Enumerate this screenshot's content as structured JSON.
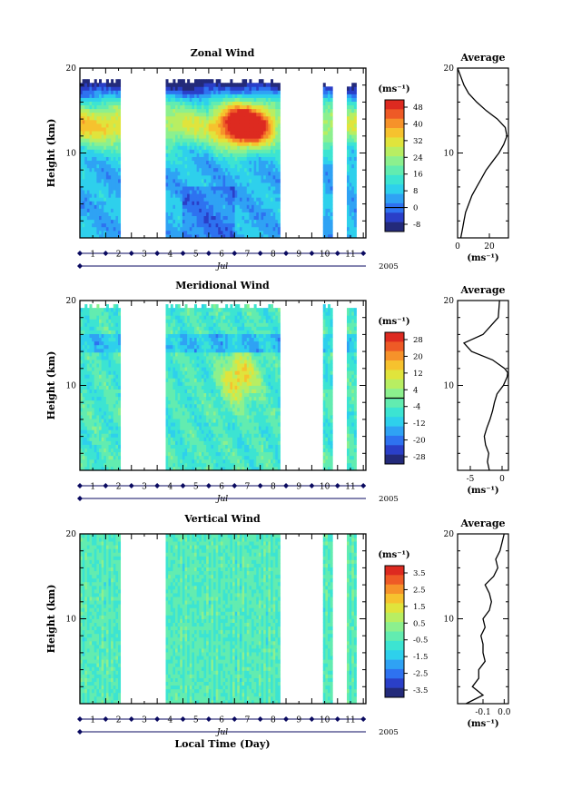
{
  "figure": {
    "x_axis_title": "Local Time (Day)",
    "month_label": "Jul",
    "year_label": "2005",
    "day_labels": [
      "1",
      "2",
      "3",
      "4",
      "5",
      "6",
      "7",
      "8",
      "9",
      "10",
      "11"
    ]
  },
  "chart_data": [
    {
      "type": "heatmap",
      "title": "Zonal Wind",
      "ylabel": "Height (km)",
      "xlabel": "Local Time (Day)",
      "ylim": [
        0,
        20
      ],
      "yticks": [
        "10",
        "20"
      ],
      "colorbar": {
        "unit": "(ms⁻¹)",
        "ticks": [
          "48",
          "40",
          "32",
          "24",
          "16",
          "8",
          "0",
          "-8"
        ],
        "values": [
          48,
          40,
          32,
          24,
          16,
          8,
          0,
          -8
        ]
      },
      "note": "maximum zonal wind (~48 m/s) near 13-14 km around day 6-7"
    },
    {
      "type": "line",
      "title": "Average",
      "xlabel": "(ms⁻¹)",
      "xticks": [
        "0",
        "20"
      ],
      "yticks": [
        "10",
        "20"
      ],
      "xlim": [
        0,
        32
      ],
      "ylim": [
        0,
        20
      ],
      "x": [
        2,
        3,
        4,
        5,
        7,
        9,
        12,
        15,
        18,
        22,
        26,
        29,
        31,
        30,
        25,
        18,
        12,
        7,
        4,
        2,
        0
      ],
      "y": [
        0,
        1,
        2,
        3,
        4,
        5,
        6,
        7,
        8,
        9,
        10,
        11,
        12,
        13,
        14,
        15,
        16,
        17,
        18,
        19,
        20
      ]
    },
    {
      "type": "heatmap",
      "title": "Meridional Wind",
      "ylabel": "Height (km)",
      "xlabel": "Local Time (Day)",
      "ylim": [
        0,
        20
      ],
      "yticks": [
        "10",
        "20"
      ],
      "colorbar": {
        "unit": "(ms⁻¹)",
        "ticks": [
          "28",
          "20",
          "12",
          "4",
          "-4",
          "-12",
          "-20",
          "-28"
        ],
        "values": [
          28,
          20,
          12,
          4,
          -4,
          -12,
          -20,
          -28
        ]
      }
    },
    {
      "type": "line",
      "title": "Average",
      "xlabel": "(ms⁻¹)",
      "xticks": [
        "-5",
        "0"
      ],
      "yticks": [
        "10",
        "20"
      ],
      "xlim": [
        -7,
        1
      ],
      "ylim": [
        0,
        20
      ],
      "x": [
        -2,
        -2.3,
        -2.1,
        -2.6,
        -2.8,
        -2.4,
        -1.9,
        -1.5,
        -1.2,
        -0.8,
        0.2,
        0.8,
        0.9,
        0.4,
        -1.5,
        -4.8,
        -6,
        -3,
        -1.8,
        -0.6,
        -0.4
      ],
      "y": [
        0,
        1,
        2,
        3,
        4,
        5,
        6,
        7,
        8,
        9,
        10,
        11,
        11.5,
        12,
        13,
        14,
        15,
        16,
        17,
        18,
        20
      ]
    },
    {
      "type": "heatmap",
      "title": "Vertical Wind",
      "ylabel": "Height (km)",
      "xlabel": "Local Time (Day)",
      "ylim": [
        0,
        20
      ],
      "yticks": [
        "10",
        "20"
      ],
      "colorbar": {
        "unit": "(ms⁻¹)",
        "ticks": [
          "3.5",
          "2.5",
          "1.5",
          "0.5",
          "-0.5",
          "-1.5",
          "-2.5",
          "-3.5"
        ],
        "values": [
          3.5,
          2.5,
          1.5,
          0.5,
          -0.5,
          -1.5,
          -2.5,
          -3.5
        ]
      }
    },
    {
      "type": "line",
      "title": "Average",
      "xlabel": "(ms⁻¹)",
      "xticks": [
        "-0.1",
        "0.0"
      ],
      "yticks": [
        "10",
        "20"
      ],
      "xlim": [
        -0.22,
        0.02
      ],
      "ylim": [
        0,
        20
      ],
      "x": [
        -0.18,
        -0.1,
        -0.15,
        -0.12,
        -0.12,
        -0.09,
        -0.1,
        -0.1,
        -0.11,
        -0.09,
        -0.1,
        -0.07,
        -0.06,
        -0.07,
        -0.09,
        -0.05,
        -0.03,
        -0.04,
        -0.02,
        -0.01,
        0.0
      ],
      "y": [
        0,
        1,
        2,
        3,
        4,
        5,
        6,
        7,
        8,
        9,
        10,
        11,
        12,
        13,
        14,
        15,
        16,
        17,
        18,
        19,
        20
      ]
    }
  ]
}
